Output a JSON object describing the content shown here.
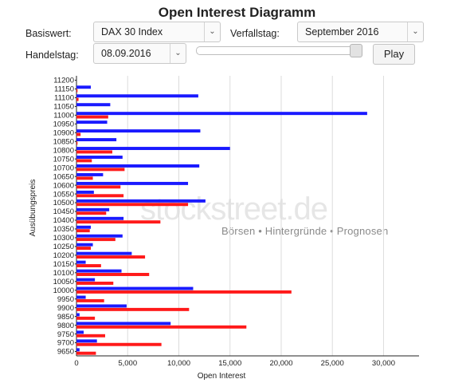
{
  "page_title": "Open Interest Diagramm",
  "controls": {
    "basiswert_label": "Basiswert:",
    "basiswert_value": "DAX 30 Index",
    "verfallstag_label": "Verfallstag:",
    "verfallstag_value": "September 2016",
    "handelstag_label": "Handelstag:",
    "handelstag_value": "08.09.2016",
    "slider_value_fraction": 1.0,
    "play_label": "Play"
  },
  "watermark": {
    "logo": "stockstreet.de",
    "tagline": "Börsen • Hintergründe • Prognosen"
  },
  "colors": {
    "call": "#1a1aff",
    "put": "#ff1a1a",
    "grid": "#dcdcdc"
  },
  "chart_data": {
    "type": "bar",
    "orientation": "horizontal",
    "title": "",
    "xlabel": "Open Interest",
    "ylabel": "Ausübungspreis",
    "xlim": [
      0,
      33000
    ],
    "xticks": [
      "0",
      "5,000",
      "10,000",
      "15,000",
      "20,000",
      "25,000",
      "30,000"
    ],
    "grid": "vertical",
    "categories": [
      "11200",
      "11150",
      "11100",
      "11050",
      "11000",
      "10950",
      "10900",
      "10850",
      "10800",
      "10750",
      "10700",
      "10650",
      "10600",
      "10550",
      "10500",
      "10450",
      "10400",
      "10350",
      "10300",
      "10250",
      "10200",
      "10150",
      "10100",
      "10050",
      "10000",
      "9950",
      "9900",
      "9850",
      "9800",
      "9750",
      "9700",
      "9650"
    ],
    "series": [
      {
        "values": [
          0,
          1400,
          11900,
          3300,
          28400,
          3000,
          12100,
          3900,
          15000,
          4500,
          12000,
          2600,
          10900,
          1700,
          12600,
          3200,
          4600,
          1400,
          4500,
          1600,
          5400,
          900,
          4400,
          1800,
          11400,
          900,
          4900,
          300,
          9200,
          700,
          2000,
          300
        ]
      },
      {
        "values": [
          0,
          100,
          200,
          0,
          3100,
          0,
          400,
          100,
          3500,
          1500,
          4700,
          1600,
          4300,
          4600,
          10900,
          2900,
          8200,
          1300,
          3800,
          1400,
          6700,
          2400,
          7100,
          3600,
          21000,
          2700,
          11000,
          1800,
          16600,
          2800,
          8300,
          1900
        ]
      }
    ]
  }
}
